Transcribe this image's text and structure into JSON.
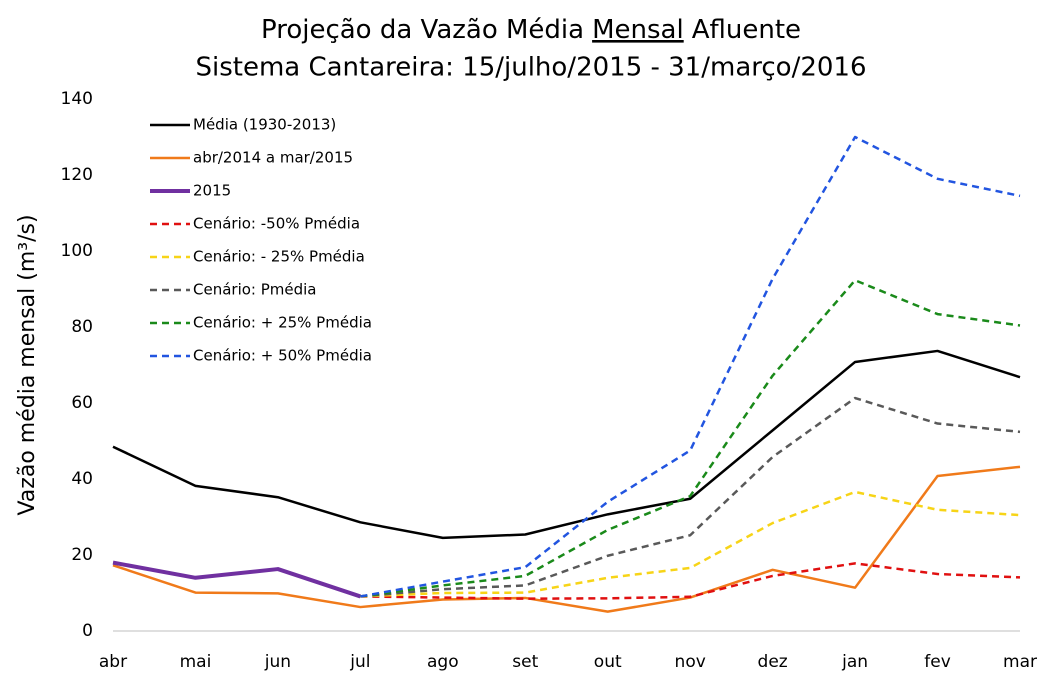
{
  "chart_data": {
    "type": "line",
    "title": [
      "Projeção da Vazão Média",
      "Mensal",
      "Afluente"
    ],
    "subtitle": "Sistema Cantareira: 15/julho/2015 - 31/março/2016",
    "y_label": "Vazão média mensal (m³/s)",
    "categories": [
      "abr",
      "mai",
      "jun",
      "jul",
      "ago",
      "set",
      "out",
      "nov",
      "dez",
      "jan",
      "fev",
      "mar"
    ],
    "ylim": [
      0,
      140
    ],
    "yticks": [
      0,
      20,
      40,
      60,
      80,
      100,
      120,
      140
    ],
    "grid": false,
    "legend": "upper-left",
    "series": [
      {
        "name": "Média (1930-2013)",
        "color": "#000000",
        "width": 2.5,
        "dashed": false,
        "values": [
          48.5,
          38.2,
          35.2,
          28.6,
          24.5,
          25.4,
          30.7,
          34.8,
          52.8,
          70.8,
          73.7,
          66.8
        ]
      },
      {
        "name": "abr/2014 a mar/2015",
        "color": "#f07a1a",
        "width": 2.5,
        "dashed": false,
        "values": [
          17.3,
          10.1,
          9.9,
          6.3,
          8.3,
          8.7,
          5.1,
          8.8,
          16.1,
          11.4,
          40.8,
          43.2
        ]
      },
      {
        "name": "2015",
        "color": "#7030a0",
        "width": 4,
        "dashed": false,
        "values": [
          18,
          14,
          16.3,
          9.1,
          null,
          null,
          null,
          null,
          null,
          null,
          null,
          null
        ]
      },
      {
        "name": "Cenário: -50% Pmédia",
        "color": "#e01010",
        "width": 2.5,
        "dashed": true,
        "values": [
          null,
          null,
          null,
          9.1,
          8.8,
          8.5,
          8.6,
          9,
          14.5,
          17.8,
          15,
          14.1
        ]
      },
      {
        "name": "Cenário: - 25% Pmédia",
        "color": "#f7d417",
        "width": 2.5,
        "dashed": true,
        "values": [
          null,
          null,
          null,
          9.1,
          10,
          10.1,
          14,
          16.6,
          28.4,
          36.6,
          31.9,
          30.5
        ]
      },
      {
        "name": "Cenário: Pmédia",
        "color": "#595959",
        "width": 2.5,
        "dashed": true,
        "values": [
          null,
          null,
          null,
          9.1,
          11,
          12,
          19.8,
          25.2,
          45.8,
          61.3,
          54.6,
          52.4
        ]
      },
      {
        "name": "Cenário: + 25% Pmédia",
        "color": "#1a8a1a",
        "width": 2.5,
        "dashed": true,
        "values": [
          null,
          null,
          null,
          9.1,
          12,
          14.5,
          26.6,
          35.5,
          67.2,
          92.3,
          83.4,
          80.4
        ]
      },
      {
        "name": "Cenário: + 50% Pmédia",
        "color": "#2255e0",
        "width": 2.5,
        "dashed": true,
        "values": [
          null,
          null,
          null,
          9.1,
          13,
          16.8,
          34,
          47.5,
          92.7,
          130,
          119,
          114.5
        ]
      }
    ]
  }
}
